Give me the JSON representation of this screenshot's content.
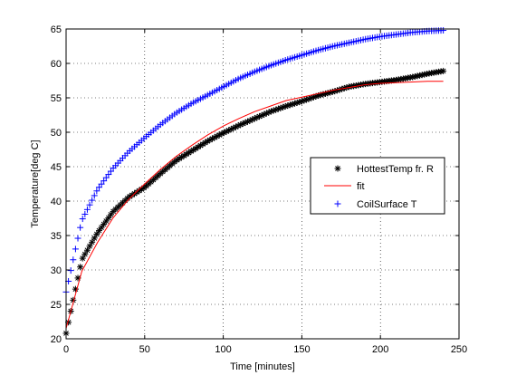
{
  "chart_data": {
    "type": "line",
    "title": "",
    "xlabel": "Time [minutes]",
    "ylabel": "Temperature[deg C]",
    "xlim": [
      0,
      250
    ],
    "ylim": [
      20,
      65
    ],
    "xticks": [
      0,
      50,
      100,
      150,
      200,
      250
    ],
    "yticks": [
      20,
      25,
      30,
      35,
      40,
      45,
      50,
      55,
      60,
      65
    ],
    "xtick_labels": [
      "0",
      "50",
      "100",
      "150",
      "200",
      "250"
    ],
    "ytick_labels": [
      "20",
      "25",
      "30",
      "35",
      "40",
      "45",
      "50",
      "55",
      "60",
      "65"
    ],
    "grid": true,
    "legend_position": "right-middle",
    "x": [
      0,
      10,
      20,
      30,
      40,
      50,
      60,
      70,
      80,
      90,
      100,
      110,
      120,
      130,
      140,
      150,
      160,
      170,
      180,
      190,
      200,
      210,
      220,
      230,
      240
    ],
    "series": [
      {
        "name": "HottestTemp fr. R",
        "marker": "asterisk",
        "color": "#000000",
        "values": [
          20.8,
          31.5,
          35.4,
          38.5,
          40.6,
          42.0,
          44.0,
          45.9,
          47.3,
          48.7,
          49.9,
          51.0,
          52.0,
          53.0,
          53.8,
          54.5,
          55.3,
          55.9,
          56.6,
          57.0,
          57.3,
          57.6,
          58.0,
          58.5,
          58.9
        ]
      },
      {
        "name": "fit",
        "marker": "none",
        "color": "#ff0000",
        "values": [
          21.5,
          29.8,
          34.0,
          37.6,
          40.3,
          42.5,
          44.6,
          46.5,
          48.1,
          49.6,
          50.9,
          52.0,
          53.0,
          53.8,
          54.6,
          55.1,
          55.6,
          56.1,
          56.5,
          56.9,
          57.1,
          57.2,
          57.3,
          57.4,
          57.4
        ]
      },
      {
        "name": "CoilSurface T",
        "marker": "plus",
        "color": "#0000ff",
        "values": [
          26.8,
          37.2,
          41.7,
          44.8,
          47.2,
          49.2,
          51.1,
          52.8,
          54.2,
          55.4,
          56.6,
          57.8,
          58.8,
          59.7,
          60.5,
          61.2,
          61.9,
          62.5,
          63.0,
          63.5,
          63.9,
          64.2,
          64.5,
          64.7,
          64.8
        ]
      }
    ]
  }
}
